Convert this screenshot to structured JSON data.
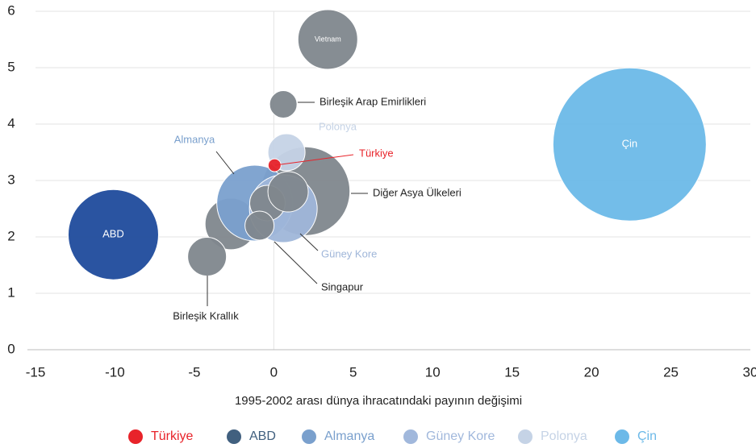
{
  "chart_data": {
    "type": "bubble",
    "xlabel": "1995-2002 arası dünya ihracatındaki payının değişimi",
    "xlim": [
      -15,
      30
    ],
    "xticks": [
      -15,
      -10,
      -5,
      0,
      5,
      10,
      15,
      20,
      25,
      30
    ],
    "ylim": [
      0,
      6
    ],
    "yticks": [
      0,
      1,
      2,
      3,
      4,
      5,
      6
    ],
    "grid": true,
    "points": [
      {
        "label": "Vietnam",
        "x": 3.4,
        "y": 5.5,
        "size": 37,
        "color": "#80878d"
      },
      {
        "label": "Birleşik Arap Emirlikleri",
        "x": 0.6,
        "y": 4.35,
        "size": 17,
        "color": "#80878d"
      },
      {
        "label": "Çin",
        "x": 22.4,
        "y": 3.64,
        "size": 95,
        "color": "#6cb9e8"
      },
      {
        "label": "Diğer Asya Ülkeleri",
        "x": 2.0,
        "y": 2.81,
        "size": 55,
        "color": "#80878d"
      },
      {
        "label": "ABD",
        "x": -10.1,
        "y": 2.04,
        "size": 56,
        "color": "#1f4b9c"
      },
      {
        "label": null,
        "x": -2.7,
        "y": 2.23,
        "size": 32,
        "color": "#80878d"
      },
      {
        "label": "Birleşik Krallık",
        "x": -4.2,
        "y": 1.65,
        "size": 24,
        "color": "#80878d"
      },
      {
        "label": "Almanya",
        "x": -1.2,
        "y": 2.6,
        "size": 47,
        "color": "#7aa0cd"
      },
      {
        "label": "Güney Kore",
        "x": 0.6,
        "y": 2.5,
        "size": 42,
        "color": "#9fb6d9"
      },
      {
        "label": null,
        "x": -0.4,
        "y": 2.6,
        "size": 22,
        "color": "#80878d"
      },
      {
        "label": null,
        "x": 0.9,
        "y": 2.8,
        "size": 25,
        "color": "#80878d"
      },
      {
        "label": "Singapur",
        "x": -0.9,
        "y": 2.2,
        "size": 18,
        "color": "#80878d"
      },
      {
        "label": "Polonya",
        "x": 0.8,
        "y": 3.5,
        "size": 23,
        "color": "#c5d3e6"
      },
      {
        "label": "Türkiye",
        "x": 0.05,
        "y": 3.27,
        "size": 8,
        "color": "#e8232a"
      }
    ],
    "legend": [
      {
        "name": "Türkiye",
        "color": "#e8232a"
      },
      {
        "name": "ABD",
        "color": "#41607f"
      },
      {
        "name": "Almanya",
        "color": "#7aa0cd"
      },
      {
        "name": "Güney Kore",
        "color": "#a1b8dc"
      },
      {
        "name": "Polonya",
        "color": "#c5d3e6"
      },
      {
        "name": "Çin",
        "color": "#6cb9e8"
      }
    ]
  }
}
